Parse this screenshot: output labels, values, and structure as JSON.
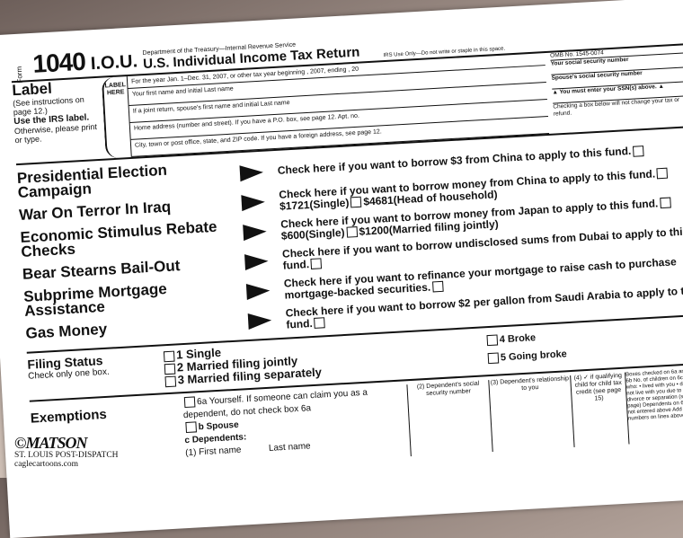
{
  "header": {
    "form_label": "Form",
    "form_number": "1040",
    "suffix": "I.O.U.",
    "department": "Department of the Treasury—Internal Revenue Service",
    "title": "U.S. Individual Income Tax Return",
    "irs_use": "IRS Use Only—Do not write or staple in this space."
  },
  "label_block": {
    "heading": "Label",
    "instructions": "(See instructions on page 12.)",
    "use_irs": "Use the IRS label.",
    "otherwise": "Otherwise, please print or type.",
    "label_here": "LABEL HERE"
  },
  "fields": [
    "For the year Jan. 1–Dec. 31, 2007, or other tax year beginning , 2007, ending , 20",
    "Your first name and initial   Last name",
    "If a joint return, spouse's first name and initial   Last name",
    "Home address (number and street). If you have a P.O. box, see page 12.   Apt. no.",
    "City, town or post office, state, and ZIP code. If you have a foreign address, see page 12."
  ],
  "side": {
    "omb": "OMB No. 1545-0074",
    "ssn": "Your social security number",
    "spouse_ssn": "Spouse's social security number",
    "must_enter": "▲ You must enter your SSN(s) above. ▲",
    "checking": "Checking a box below will not change your tax or refund."
  },
  "items": [
    {
      "label": "Presidential Election Campaign",
      "text": "Check here if you want to borrow $3 from China to apply to this fund."
    },
    {
      "label": "War On Terror In Iraq",
      "text": "Check here if you want to borrow  money from China to apply to this fund.",
      "opts": [
        "$1721(Single)",
        "$4681(Head of household)"
      ]
    },
    {
      "label": "Economic Stimulus Rebate Checks",
      "text": "Check here if you want to borrow money from Japan to apply to this fund.",
      "opts": [
        "$600(Single)",
        "$1200(Married filing jointly)"
      ]
    },
    {
      "label": "Bear Stearns Bail-Out",
      "text": "Check here if you want to borrow undisclosed sums from Dubai to apply to this fund."
    },
    {
      "label": "Subprime Mortgage Assistance",
      "text": "Check here if you want to refinance your mortgage to raise cash to purchase mortgage-backed securities."
    },
    {
      "label": "Gas Money",
      "text": "Check here if you want to borrow $2 per gallon from Saudi Arabia to apply to this fund."
    }
  ],
  "filing": {
    "heading": "Filing Status",
    "sub": "Check only one box.",
    "options": [
      "1 Single",
      "2 Married filing jointly",
      "3 Married filing separately"
    ],
    "extra": [
      "4 Broke",
      "5 Going broke"
    ]
  },
  "exemptions": {
    "heading": "Exemptions",
    "yourself": "6a Yourself. If someone can claim you as a dependent, do not check box 6a",
    "spouse": "b Spouse",
    "dependents": "c Dependents:",
    "first": "(1) First name",
    "last": "Last name",
    "col2": "(2) Dependent's social security number",
    "col3": "(3) Dependent's relationship to you",
    "col4": "(4) ✓ if qualifying child for child tax credit (see page 15)",
    "right": "Boxes checked on 6a and 6b No. of children on 6c who: • lived with you • did not live with you due to divorce or separation (see page) Dependents on 6c not entered above Add numbers on lines above"
  },
  "credit": {
    "artist": "©MATSON",
    "paper": "ST. LOUIS POST-DISPATCH",
    "site": "caglecartoons.com"
  }
}
